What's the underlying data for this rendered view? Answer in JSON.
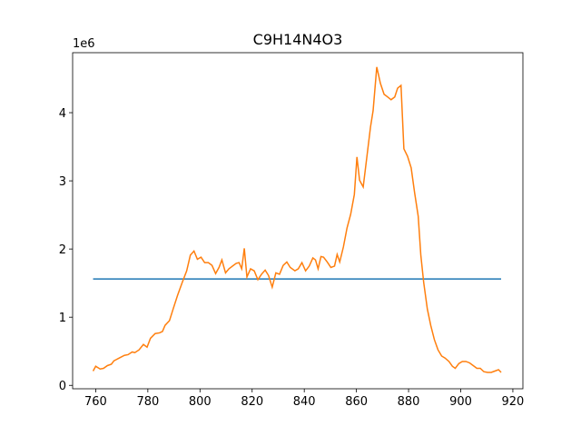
{
  "chart_data": {
    "type": "line",
    "title": "C9H14N4O3",
    "y_offset_label": "1e6",
    "xlim": [
      751.15,
      923.85
    ],
    "ylim": [
      -0.05,
      4.88
    ],
    "xticks": [
      760,
      780,
      800,
      820,
      840,
      860,
      880,
      900,
      920
    ],
    "yticks": [
      0,
      1,
      2,
      3,
      4
    ],
    "series": [
      {
        "color": "#1f77b4",
        "x": [
          759,
          915.5
        ],
        "values": [
          1.56,
          1.56
        ]
      },
      {
        "color": "#ff7f0e",
        "x": [
          759,
          760,
          761.7,
          763,
          764.5,
          766,
          767,
          769,
          771,
          772.4,
          774,
          775,
          776.6,
          778.3,
          779.7,
          781,
          782.8,
          784.5,
          785.6,
          786.6,
          788.3,
          789.7,
          791.4,
          793.2,
          794.9,
          796.3,
          797.7,
          799,
          800.4,
          801.8,
          803.2,
          804.6,
          806,
          807.3,
          808.4,
          809.8,
          811.1,
          812.5,
          813.9,
          815,
          816,
          817,
          818,
          819.4,
          820.8,
          822.2,
          823.6,
          825,
          826.3,
          827.7,
          829.1,
          830.5,
          831.9,
          833.3,
          834.6,
          836.4,
          837.7,
          839.1,
          840.5,
          841.9,
          843.3,
          844.3,
          845.3,
          846.4,
          847.4,
          848.8,
          850.2,
          851.6,
          852.6,
          853.6,
          855,
          856.4,
          857.8,
          859.2,
          860.2,
          861.2,
          862.6,
          864,
          865.4,
          866.4,
          867.8,
          869.2,
          870.6,
          872,
          873.3,
          874.7,
          875.8,
          877.1,
          878.2,
          879.6,
          881,
          882.3,
          883.7,
          884.7,
          885.8,
          887.2,
          888.5,
          889.9,
          891.3,
          892.7,
          894,
          895.5,
          896.8,
          897.9,
          899.3,
          900.6,
          902,
          903.4,
          904.8,
          906.2,
          907.5,
          908.9,
          910.3,
          911.7,
          913.1,
          914.5,
          915.5
        ],
        "values": [
          0.21,
          0.28,
          0.24,
          0.25,
          0.29,
          0.31,
          0.36,
          0.4,
          0.44,
          0.45,
          0.49,
          0.48,
          0.52,
          0.6,
          0.56,
          0.69,
          0.76,
          0.77,
          0.79,
          0.88,
          0.95,
          1.12,
          1.32,
          1.51,
          1.68,
          1.91,
          1.97,
          1.85,
          1.88,
          1.8,
          1.8,
          1.76,
          1.64,
          1.73,
          1.84,
          1.65,
          1.71,
          1.75,
          1.79,
          1.8,
          1.71,
          2.01,
          1.59,
          1.71,
          1.68,
          1.55,
          1.63,
          1.69,
          1.61,
          1.44,
          1.65,
          1.63,
          1.76,
          1.81,
          1.73,
          1.68,
          1.71,
          1.8,
          1.68,
          1.75,
          1.87,
          1.84,
          1.71,
          1.89,
          1.88,
          1.81,
          1.73,
          1.75,
          1.92,
          1.81,
          2.03,
          2.31,
          2.51,
          2.8,
          3.35,
          3.01,
          2.91,
          3.35,
          3.79,
          4.03,
          4.67,
          4.43,
          4.27,
          4.23,
          4.19,
          4.23,
          4.36,
          4.4,
          3.47,
          3.36,
          3.19,
          2.83,
          2.48,
          1.91,
          1.51,
          1.12,
          0.88,
          0.67,
          0.52,
          0.43,
          0.4,
          0.35,
          0.28,
          0.25,
          0.32,
          0.35,
          0.35,
          0.33,
          0.29,
          0.25,
          0.25,
          0.2,
          0.19,
          0.19,
          0.21,
          0.23,
          0.19
        ]
      }
    ]
  }
}
